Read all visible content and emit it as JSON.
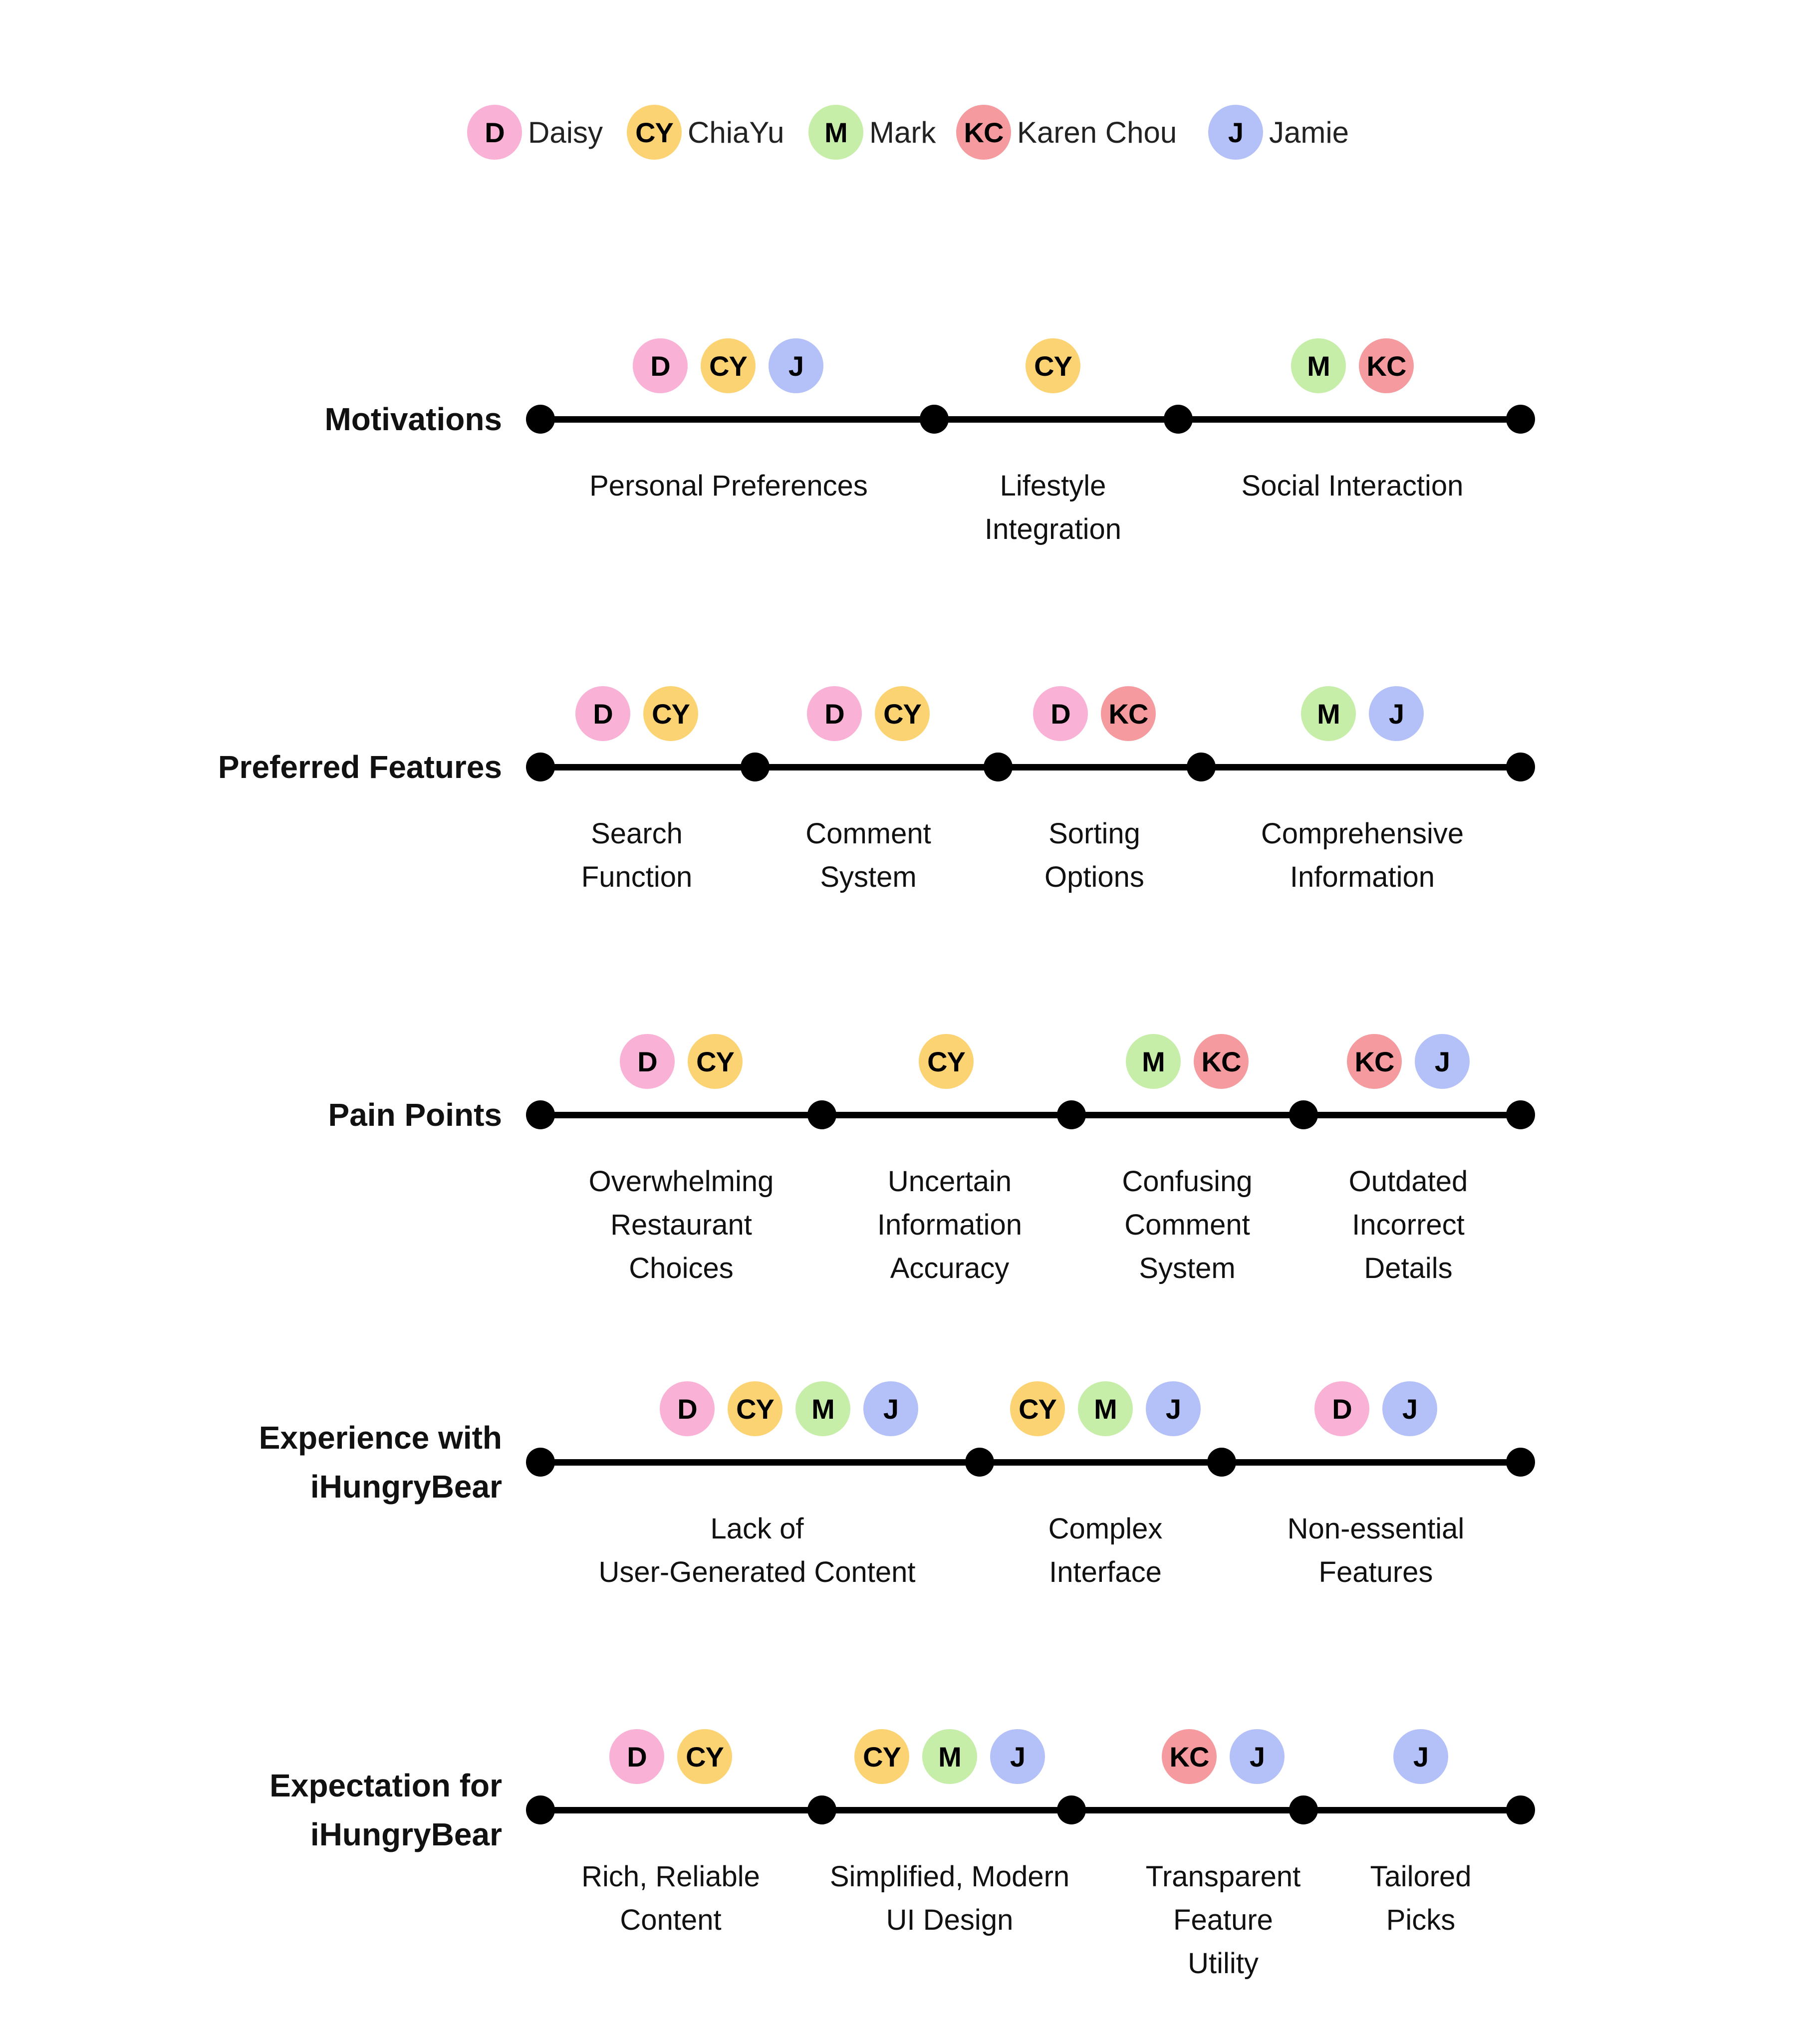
{
  "people": [
    {
      "initials": "D",
      "name": "Daisy",
      "color": "#F9B1D6"
    },
    {
      "initials": "CY",
      "name": "ChiaYu",
      "color": "#FCD373"
    },
    {
      "initials": "M",
      "name": "Mark",
      "color": "#C6EEA8"
    },
    {
      "initials": "KC",
      "name": "Karen Chou",
      "color": "#F59A9E"
    },
    {
      "initials": "J",
      "name": "Jamie",
      "color": "#B4C0F8"
    }
  ],
  "rows": [
    {
      "title": [
        "Motivations"
      ],
      "segments": [
        {
          "label": [
            "Personal Preferences"
          ],
          "people": [
            "D",
            "CY",
            "J"
          ]
        },
        {
          "label": [
            "Lifestyle",
            "Integration"
          ],
          "people": [
            "CY"
          ]
        },
        {
          "label": [
            "Social Interaction"
          ],
          "people": [
            "M",
            "KC"
          ]
        }
      ]
    },
    {
      "title": [
        "Preferred Features"
      ],
      "segments": [
        {
          "label": [
            "Search",
            "Function"
          ],
          "people": [
            "D",
            "CY"
          ]
        },
        {
          "label": [
            "Comment",
            "System"
          ],
          "people": [
            "D",
            "CY"
          ]
        },
        {
          "label": [
            "Sorting",
            "Options"
          ],
          "people": [
            "D",
            "KC"
          ]
        },
        {
          "label": [
            "Comprehensive",
            "Information"
          ],
          "people": [
            "M",
            "J"
          ]
        }
      ]
    },
    {
      "title": [
        "Pain Points"
      ],
      "segments": [
        {
          "label": [
            "Overwhelming",
            "Restaurant",
            "Choices"
          ],
          "people": [
            "D",
            "CY"
          ]
        },
        {
          "label": [
            "Uncertain",
            "Information",
            "Accuracy"
          ],
          "people": [
            "CY"
          ]
        },
        {
          "label": [
            "Confusing",
            "Comment",
            "System"
          ],
          "people": [
            "M",
            "KC"
          ]
        },
        {
          "label": [
            "Outdated",
            "Incorrect",
            "Details"
          ],
          "people": [
            "KC",
            "J"
          ]
        }
      ]
    },
    {
      "title": [
        "Experience with",
        "iHungryBear"
      ],
      "segments": [
        {
          "label": [
            "Lack of",
            "User-Generated Content"
          ],
          "people": [
            "D",
            "CY",
            "M",
            "J"
          ]
        },
        {
          "label": [
            "Complex",
            "Interface"
          ],
          "people": [
            "CY",
            "M",
            "J"
          ]
        },
        {
          "label": [
            "Non-essential",
            "Features"
          ],
          "people": [
            "D",
            "J"
          ]
        }
      ]
    },
    {
      "title": [
        "Expectation for",
        "iHungryBear"
      ],
      "segments": [
        {
          "label": [
            "Rich, Reliable",
            "Content"
          ],
          "people": [
            "D",
            "CY"
          ]
        },
        {
          "label": [
            "Simplified, Modern",
            "UI Design"
          ],
          "people": [
            "CY",
            "M",
            "J"
          ]
        },
        {
          "label": [
            "Transparent",
            "Feature",
            "Utility"
          ],
          "people": [
            "KC",
            "J"
          ]
        },
        {
          "label": [
            "Tailored",
            "Picks"
          ],
          "people": [
            "J"
          ]
        }
      ]
    }
  ]
}
